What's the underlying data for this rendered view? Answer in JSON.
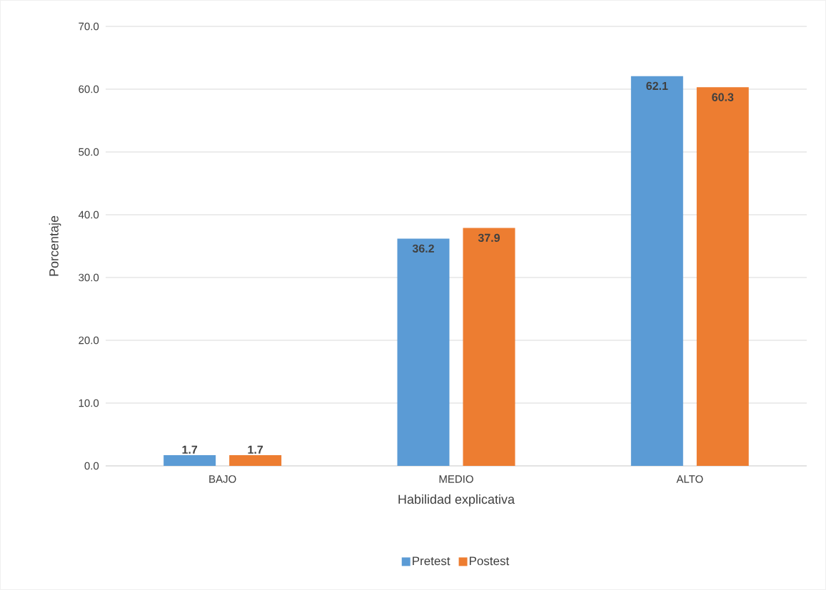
{
  "chart_data": {
    "type": "bar",
    "xlabel": "Habilidad explicativa",
    "ylabel": "Porcentaje",
    "categories": [
      "BAJO",
      "MEDIO",
      "ALTO"
    ],
    "series": [
      {
        "name": "Pretest",
        "color": "#5b9bd5",
        "values": [
          1.7,
          36.2,
          62.1
        ]
      },
      {
        "name": "Postest",
        "color": "#ed7d31",
        "values": [
          1.7,
          37.9,
          60.3
        ]
      }
    ],
    "ylim": [
      0,
      70
    ],
    "yticks": [
      {
        "value": 0,
        "label": "0.0"
      },
      {
        "value": 10,
        "label": "10.0"
      },
      {
        "value": 20,
        "label": "20.0"
      },
      {
        "value": 30,
        "label": "30.0"
      },
      {
        "value": 40,
        "label": "40.0"
      },
      {
        "value": 50,
        "label": "50.0"
      },
      {
        "value": 60,
        "label": "60.0"
      },
      {
        "value": 70,
        "label": "70.0"
      }
    ],
    "grid": "y",
    "legend": "bottom",
    "data_labels": true
  }
}
